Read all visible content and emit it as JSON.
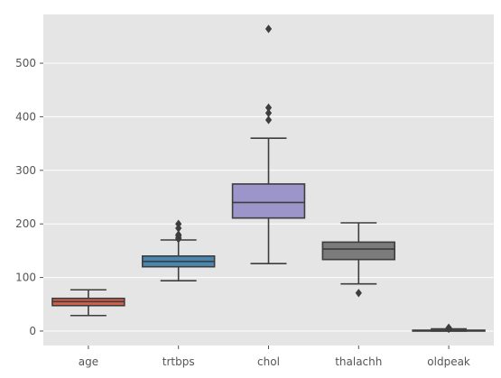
{
  "chart_data": {
    "type": "box",
    "title": "",
    "xlabel": "",
    "ylabel": "",
    "ylim": [
      -27,
      591
    ],
    "yticks": [
      0,
      100,
      200,
      300,
      400,
      500
    ],
    "grid": true,
    "colors": {
      "background": "#e5e5e5",
      "grid": "#ffffff",
      "line": "#3d3d3d",
      "tick_text": "#555555"
    },
    "categories": [
      "age",
      "trtbps",
      "chol",
      "thalachh",
      "oldpeak"
    ],
    "series": [
      {
        "category": "age",
        "color": "#d2604c",
        "whisker_low": 29,
        "q1": 47.5,
        "median": 55,
        "q3": 61,
        "whisker_high": 77,
        "outliers": []
      },
      {
        "category": "trtbps",
        "color": "#4a87b0",
        "whisker_low": 94,
        "q1": 120,
        "median": 130,
        "q3": 140,
        "whisker_high": 170,
        "outliers": [
          172,
          174,
          178,
          180,
          192,
          200
        ]
      },
      {
        "category": "chol",
        "color": "#9c95c9",
        "whisker_low": 126,
        "q1": 211,
        "median": 240,
        "q3": 274.5,
        "whisker_high": 360,
        "outliers": [
          394,
          407,
          417,
          564
        ]
      },
      {
        "category": "thalachh",
        "color": "#7b7b7b",
        "whisker_low": 88,
        "q1": 133.5,
        "median": 153,
        "q3": 166,
        "whisker_high": 202,
        "outliers": [
          71
        ]
      },
      {
        "category": "oldpeak",
        "color": "#a6a6a6",
        "whisker_low": 0,
        "q1": 0,
        "median": 0.8,
        "q3": 1.6,
        "whisker_high": 4.0,
        "outliers": [
          4.2,
          4.4,
          5.6,
          6.2
        ]
      }
    ]
  }
}
